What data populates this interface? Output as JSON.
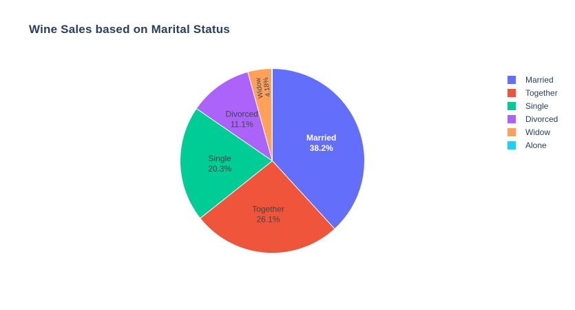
{
  "chart_data": {
    "type": "pie",
    "title": "Wine Sales based on Marital Status",
    "categories": [
      "Married",
      "Together",
      "Single",
      "Divorced",
      "Widow",
      "Alone"
    ],
    "values": [
      38.2,
      26.1,
      20.3,
      11.1,
      4.18,
      0.12
    ],
    "labels": [
      "38.2%",
      "26.1%",
      "20.3%",
      "11.1%",
      "4.18%",
      ""
    ],
    "colors": [
      "#636efa",
      "#ef553b",
      "#00cc96",
      "#ab63fa",
      "#ffa15a",
      "#19d3f3"
    ],
    "legend_position": "right",
    "direction": "clockwise",
    "start": "top"
  }
}
